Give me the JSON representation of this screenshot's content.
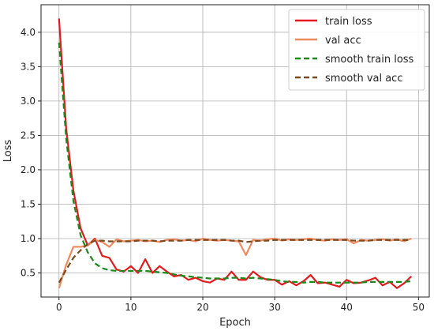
{
  "chart_data": {
    "type": "line",
    "title": "",
    "xlabel": "Epoch",
    "ylabel": "Loss",
    "xlim": [
      -2.5,
      51.5
    ],
    "ylim": [
      0.15,
      4.4
    ],
    "xticks": [
      0,
      10,
      20,
      30,
      40,
      50
    ],
    "yticks": [
      0.5,
      1.0,
      1.5,
      2.0,
      2.5,
      3.0,
      3.5,
      4.0
    ],
    "grid": true,
    "legend_position": "top-right",
    "x": [
      0,
      1,
      2,
      3,
      4,
      5,
      6,
      7,
      8,
      9,
      10,
      11,
      12,
      13,
      14,
      15,
      16,
      17,
      18,
      19,
      20,
      21,
      22,
      23,
      24,
      25,
      26,
      27,
      28,
      29,
      30,
      31,
      32,
      33,
      34,
      35,
      36,
      37,
      38,
      39,
      40,
      41,
      42,
      43,
      44,
      45,
      46,
      47,
      48,
      49
    ],
    "series": [
      {
        "name": "train loss",
        "color": "#e31a1c",
        "style": "solid",
        "values": [
          4.2,
          2.6,
          1.7,
          1.15,
          0.9,
          1.0,
          0.75,
          0.72,
          0.55,
          0.52,
          0.6,
          0.5,
          0.7,
          0.5,
          0.6,
          0.52,
          0.45,
          0.47,
          0.4,
          0.43,
          0.38,
          0.36,
          0.42,
          0.4,
          0.52,
          0.4,
          0.4,
          0.52,
          0.44,
          0.4,
          0.4,
          0.33,
          0.38,
          0.32,
          0.38,
          0.47,
          0.35,
          0.36,
          0.33,
          0.3,
          0.4,
          0.35,
          0.36,
          0.39,
          0.43,
          0.32,
          0.37,
          0.28,
          0.35,
          0.45
        ]
      },
      {
        "name": "val acc",
        "color": "#f08a5d",
        "style": "solid",
        "values": [
          0.28,
          0.62,
          0.88,
          0.88,
          0.9,
          0.98,
          0.95,
          0.88,
          0.99,
          0.96,
          0.97,
          0.98,
          0.96,
          0.97,
          0.95,
          0.98,
          0.99,
          0.97,
          0.98,
          0.96,
          1.0,
          0.98,
          0.97,
          0.98,
          0.97,
          0.96,
          0.76,
          0.98,
          0.97,
          0.99,
          1.0,
          0.97,
          0.99,
          0.98,
          0.99,
          1.0,
          0.98,
          0.97,
          0.99,
          0.98,
          0.99,
          0.93,
          0.98,
          0.97,
          0.98,
          0.99,
          0.97,
          0.99,
          0.96,
          1.0
        ]
      },
      {
        "name": "smooth train loss",
        "color": "#1a8a1a",
        "style": "dashed",
        "values": [
          3.85,
          2.45,
          1.55,
          1.05,
          0.8,
          0.64,
          0.57,
          0.54,
          0.53,
          0.53,
          0.53,
          0.53,
          0.53,
          0.52,
          0.51,
          0.5,
          0.48,
          0.46,
          0.45,
          0.44,
          0.43,
          0.42,
          0.42,
          0.42,
          0.43,
          0.43,
          0.42,
          0.43,
          0.42,
          0.41,
          0.4,
          0.38,
          0.37,
          0.37,
          0.36,
          0.37,
          0.37,
          0.36,
          0.36,
          0.36,
          0.36,
          0.36,
          0.36,
          0.37,
          0.37,
          0.37,
          0.37,
          0.37,
          0.37,
          0.38
        ]
      },
      {
        "name": "smooth val acc",
        "color": "#7a4a1e",
        "style": "dashed",
        "values": [
          0.36,
          0.55,
          0.72,
          0.83,
          0.92,
          0.97,
          0.97,
          0.96,
          0.96,
          0.96,
          0.96,
          0.97,
          0.97,
          0.97,
          0.96,
          0.97,
          0.97,
          0.97,
          0.98,
          0.98,
          0.98,
          0.98,
          0.98,
          0.98,
          0.97,
          0.97,
          0.95,
          0.96,
          0.97,
          0.97,
          0.98,
          0.98,
          0.98,
          0.98,
          0.98,
          0.98,
          0.98,
          0.98,
          0.98,
          0.98,
          0.98,
          0.97,
          0.97,
          0.97,
          0.98,
          0.98,
          0.98,
          0.98,
          0.98,
          0.98
        ]
      }
    ]
  }
}
